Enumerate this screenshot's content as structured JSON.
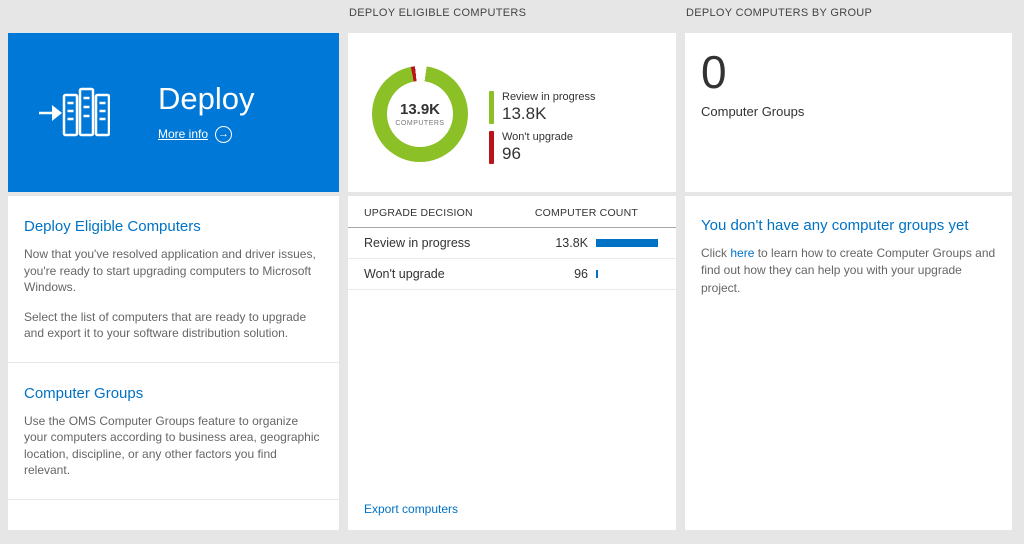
{
  "headers": {
    "middle": "DEPLOY ELIGIBLE COMPUTERS",
    "right": "DEPLOY COMPUTERS BY GROUP"
  },
  "left": {
    "tile": {
      "title": "Deploy",
      "more_info_label": "More info",
      "more_info_icon": "→"
    },
    "sections": [
      {
        "heading": "Deploy Eligible Computers",
        "paragraphs": [
          "Now that you've resolved application and driver issues, you're ready to start upgrading computers to Microsoft Windows.",
          "Select the list of computers that are ready to upgrade and export it to your software distribution solution."
        ]
      },
      {
        "heading": "Computer Groups",
        "paragraphs": [
          "Use the OMS Computer Groups feature to organize your computers according to business area, geographic location, discipline, or any other factors you find relevant."
        ]
      }
    ]
  },
  "middle": {
    "donut": {
      "center_value": "13.9K",
      "center_label": "COMPUTERS"
    },
    "legend": [
      {
        "label": "Review in progress",
        "value": "13.8K",
        "color": "#8bc127"
      },
      {
        "label": "Won't upgrade",
        "value": "96",
        "color": "#ba141a"
      }
    ],
    "table": {
      "col_decision": "UPGRADE DECISION",
      "col_count": "COMPUTER COUNT",
      "rows": [
        {
          "label": "Review in progress",
          "value": "13.8K",
          "bar_pct": 97
        },
        {
          "label": "Won't upgrade",
          "value": "96",
          "bar_pct": 3
        }
      ]
    },
    "export_link": "Export computers"
  },
  "right": {
    "count": "0",
    "count_label": "Computer Groups",
    "empty": {
      "heading": "You don't have any computer groups yet",
      "text_before_link": "Click ",
      "link_text": "here",
      "text_after_link": " to learn how to create Computer Groups and find out how they can help you with your upgrade project."
    }
  },
  "chart_data": {
    "type": "pie",
    "title": "DEPLOY ELIGIBLE COMPUTERS",
    "categories": [
      "Review in progress",
      "Won't upgrade"
    ],
    "values": [
      13800,
      96
    ],
    "center_label": "13.9K COMPUTERS",
    "colors": [
      "#8bc127",
      "#ba141a"
    ],
    "legend_position": "right"
  },
  "colors": {
    "tile_blue": "#0078d7",
    "link_blue": "#0072c6",
    "bar_blue": "#0072c6",
    "green": "#8bc127",
    "red": "#ba141a",
    "background": "#e6e6e6"
  }
}
